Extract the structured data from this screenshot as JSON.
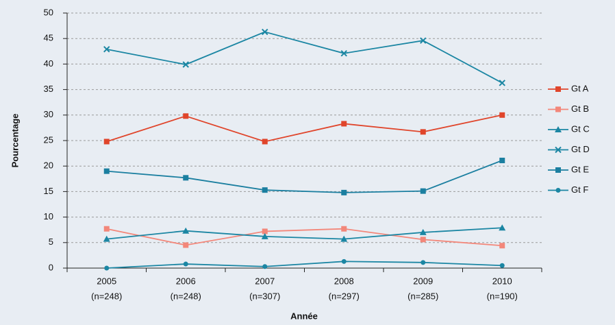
{
  "chart_data": {
    "type": "line",
    "x_label": "Année",
    "y_label": "Pourcentage",
    "categories": [
      "2005",
      "2006",
      "2007",
      "2008",
      "2009",
      "2010"
    ],
    "category_notes": [
      "(n=248)",
      "(n=248)",
      "(n=307)",
      "(n=297)",
      "(n=285)",
      "(n=190)"
    ],
    "ylim": [
      0,
      50
    ],
    "yticks": [
      0,
      5,
      10,
      15,
      20,
      25,
      30,
      35,
      40,
      45,
      50
    ],
    "grid": true,
    "legend": "right",
    "series": [
      {
        "name": "Gt A",
        "color": "#e0452b",
        "marker": "square",
        "values": [
          24.8,
          29.8,
          24.8,
          28.3,
          26.7,
          30.0
        ]
      },
      {
        "name": "Gt B",
        "color": "#f3877a",
        "marker": "square",
        "values": [
          7.7,
          4.5,
          7.2,
          7.7,
          5.6,
          4.4
        ]
      },
      {
        "name": "Gt C",
        "color": "#1b86a3",
        "marker": "triangle",
        "values": [
          5.7,
          7.3,
          6.2,
          5.7,
          7.0,
          7.9
        ]
      },
      {
        "name": "Gt D",
        "color": "#1b86a3",
        "marker": "cross",
        "values": [
          42.9,
          39.9,
          46.3,
          42.1,
          44.6,
          36.3
        ]
      },
      {
        "name": "Gt E",
        "color": "#1b7fa0",
        "marker": "square",
        "values": [
          19.0,
          17.7,
          15.3,
          14.8,
          15.1,
          21.1
        ]
      },
      {
        "name": "Gt F",
        "color": "#1b86a3",
        "marker": "circle",
        "values": [
          0,
          0.8,
          0.3,
          1.3,
          1.1,
          0.5
        ]
      }
    ]
  }
}
